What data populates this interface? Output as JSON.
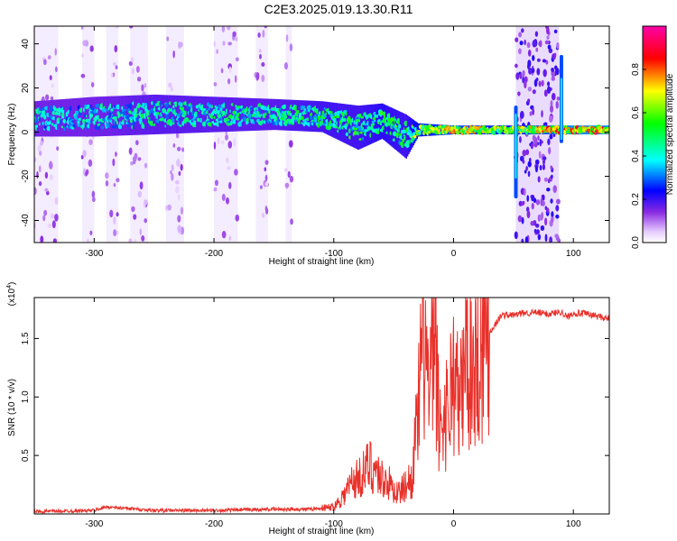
{
  "title": "C2E3.2025.019.13.30.R11",
  "chart_data": [
    {
      "type": "heatmap",
      "xlabel": "Height of straight line (km)",
      "ylabel": "Frequency (Hz)",
      "xlim": [
        -350,
        130
      ],
      "ylim": [
        -50,
        48
      ],
      "xticks": [
        -300,
        -200,
        -100,
        0,
        100
      ],
      "xtick_labels": [
        "-300",
        "-200",
        "-100",
        "0",
        "100"
      ],
      "yticks": [
        -40,
        -20,
        0,
        20,
        40
      ],
      "ytick_labels": [
        "-40",
        "-20",
        "0",
        "20",
        "40"
      ],
      "colorbar": {
        "label": "Normalized spectral amplitude",
        "range": [
          0,
          1
        ],
        "ticks": [
          0.0,
          0.2,
          0.4,
          0.6,
          0.8
        ],
        "tick_labels": [
          "0.0",
          "0.2",
          "0.4",
          "0.6",
          "0.8"
        ],
        "colormap": [
          "#ffffff",
          "#6a00ff",
          "#0000ff",
          "#00ffff",
          "#00ff00",
          "#ffff00",
          "#ff0000",
          "#ff00aa"
        ]
      },
      "features": {
        "main_band": [
          {
            "x": -350,
            "f": 6,
            "width": 8,
            "amp": 0.45
          },
          {
            "x": -300,
            "f": 7,
            "width": 9,
            "amp": 0.45
          },
          {
            "x": -250,
            "f": 8,
            "width": 9,
            "amp": 0.5
          },
          {
            "x": -200,
            "f": 8,
            "width": 8,
            "amp": 0.5
          },
          {
            "x": -150,
            "f": 8,
            "width": 7,
            "amp": 0.5
          },
          {
            "x": -110,
            "f": 7,
            "width": 7,
            "amp": 0.55
          },
          {
            "x": -80,
            "f": 2,
            "width": 10,
            "amp": 0.55
          },
          {
            "x": -60,
            "f": 5,
            "width": 8,
            "amp": 0.6
          },
          {
            "x": -40,
            "f": -2,
            "width": 10,
            "amp": 0.55
          },
          {
            "x": -30,
            "f": 1,
            "width": 3,
            "amp": 0.7
          },
          {
            "x": 0,
            "f": 1,
            "width": 2,
            "amp": 0.8
          },
          {
            "x": 45,
            "f": 1,
            "width": 2,
            "amp": 0.7
          },
          {
            "x": 100,
            "f": 1,
            "width": 2,
            "amp": 0.9
          },
          {
            "x": 130,
            "f": 1,
            "width": 2,
            "amp": 0.9
          }
        ],
        "broadband_strips": [
          [
            -350,
            -330
          ],
          [
            -310,
            -300
          ],
          [
            -290,
            -280
          ],
          [
            -270,
            -255
          ],
          [
            -240,
            -225
          ],
          [
            -200,
            -180
          ],
          [
            -165,
            -155
          ],
          [
            -140,
            -135
          ],
          [
            52,
            88
          ]
        ]
      }
    },
    {
      "type": "line",
      "xlabel": "Height of straight line (km)",
      "ylabel": "SNR (10 * v/v)",
      "ylabel_multiplier": "(x10",
      "ylabel_exponent": "4",
      "ylabel_multiplier_close": ")",
      "xlim": [
        -350,
        130
      ],
      "ylim": [
        0,
        1.85
      ],
      "xticks": [
        -300,
        -200,
        -100,
        0,
        100
      ],
      "xtick_labels": [
        "-300",
        "-200",
        "-100",
        "0",
        "100"
      ],
      "yticks": [
        0.5,
        1.0,
        1.5
      ],
      "ytick_labels": [
        "0.5",
        "1.0",
        "1.5"
      ],
      "line_color": "#e8302a",
      "series": [
        {
          "x": [
            -350,
            -300,
            -290,
            -250,
            -200,
            -150,
            -120,
            -100,
            -95,
            -90,
            -85,
            -80,
            -75,
            -70,
            -65,
            -60,
            -55,
            -50,
            -45,
            -40,
            -35,
            -30,
            -28,
            -25,
            -22,
            -20,
            -18,
            -15,
            -12,
            -10,
            -5,
            0,
            5,
            10,
            15,
            20,
            25,
            30,
            40,
            50,
            60,
            70,
            80,
            90,
            95,
            100,
            110,
            120,
            130
          ],
          "y": [
            0.02,
            0.03,
            0.06,
            0.03,
            0.03,
            0.04,
            0.04,
            0.06,
            0.12,
            0.18,
            0.28,
            0.3,
            0.35,
            0.42,
            0.38,
            0.3,
            0.28,
            0.2,
            0.18,
            0.25,
            0.3,
            0.8,
            1.1,
            1.5,
            1.25,
            0.9,
            1.3,
            1.4,
            0.7,
            0.8,
            0.9,
            1.2,
            0.9,
            1.35,
            1.3,
            1.3,
            1.45,
            1.55,
            1.7,
            1.7,
            1.72,
            1.72,
            1.71,
            1.73,
            1.68,
            1.72,
            1.71,
            1.69,
            1.67
          ]
        }
      ]
    }
  ]
}
